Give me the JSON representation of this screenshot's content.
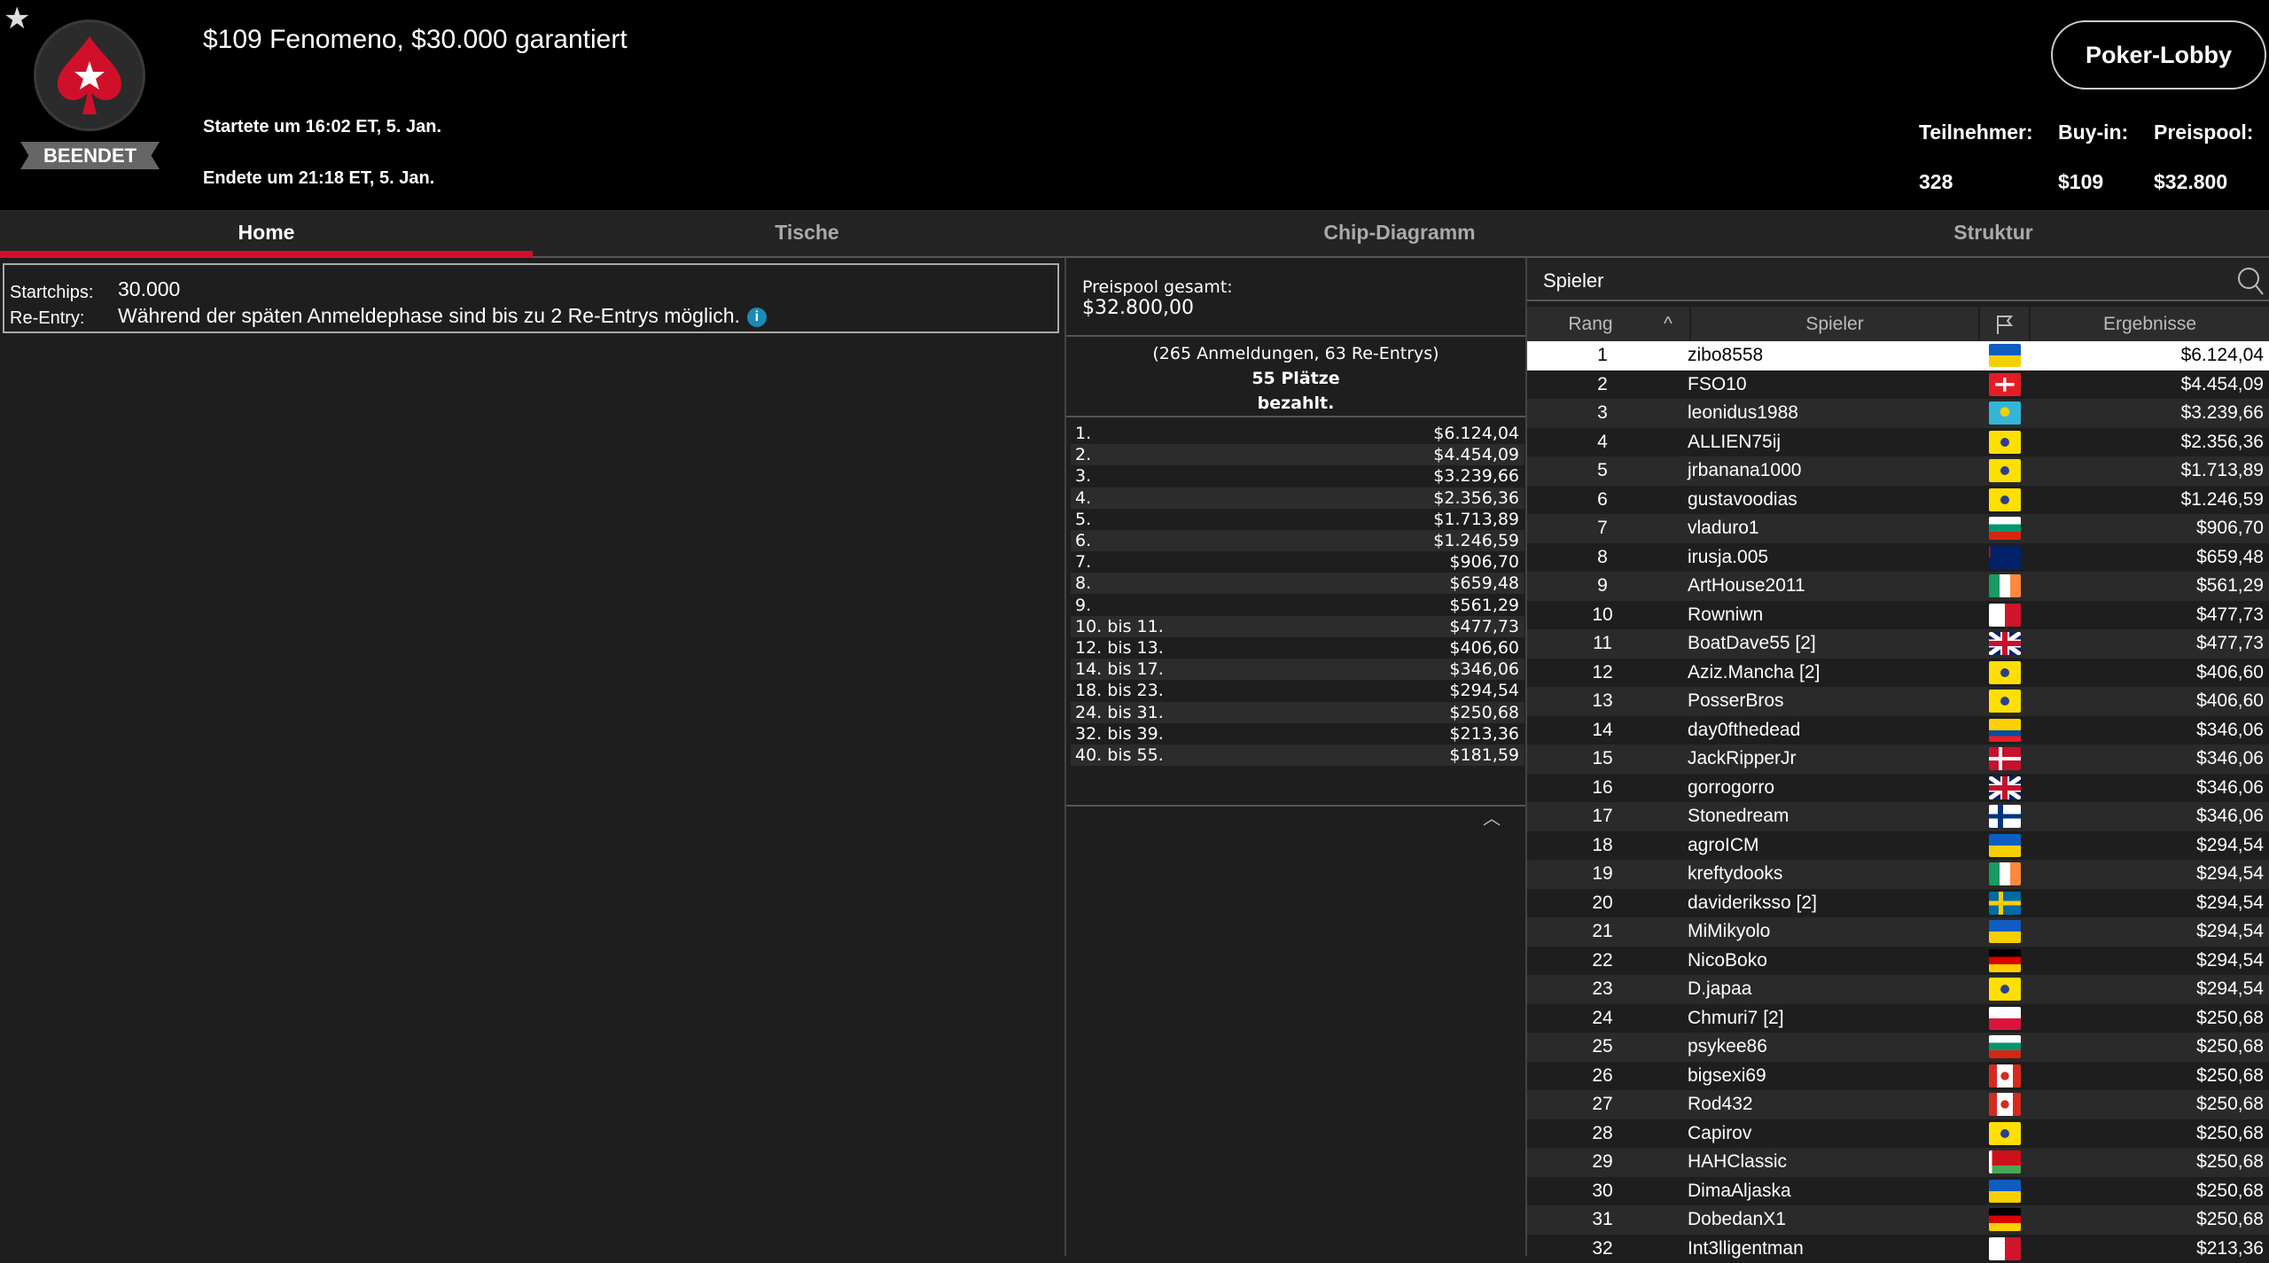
{
  "header": {
    "status_badge": "BEENDET",
    "title": "$109 Fenomeno, $30.000 garantiert",
    "started": "Startete um 16:02 ET, 5. Jan.",
    "ended": "Endete um 21:18 ET, 5. Jan.",
    "lobby_button": "Poker-Lobby",
    "stats": [
      {
        "label": "Teilnehmer:",
        "value": "328"
      },
      {
        "label": "Buy-in:",
        "value": "$109"
      },
      {
        "label": "Preispool:",
        "value": "$32.800"
      }
    ]
  },
  "tabs": [
    {
      "label": "Home",
      "active": true
    },
    {
      "label": "Tische"
    },
    {
      "label": "Chip-Diagramm"
    },
    {
      "label": "Struktur"
    }
  ],
  "home": {
    "startchips_label": "Startchips:",
    "startchips_value": "30.000",
    "reentry_label": "Re-Entry:",
    "reentry_value": "Während der späten Anmeldephase sind bis zu 2 Re-Entrys möglich.",
    "info_icon": "i"
  },
  "prizepool": {
    "label": "Preispool gesamt:",
    "value": "$32.800,00",
    "entries": "(265 Anmeldungen, 63 Re-Entrys)",
    "paid_line1": "55 Plätze",
    "paid_line2": "bezahlt.",
    "payouts": [
      [
        "1.",
        "$6.124,04"
      ],
      [
        "2.",
        "$4.454,09"
      ],
      [
        "3.",
        "$3.239,66"
      ],
      [
        "4.",
        "$2.356,36"
      ],
      [
        "5.",
        "$1.713,89"
      ],
      [
        "6.",
        "$1.246,59"
      ],
      [
        "7.",
        "$906,70"
      ],
      [
        "8.",
        "$659,48"
      ],
      [
        "9.",
        "$561,29"
      ],
      [
        "10. bis 11.",
        "$477,73"
      ],
      [
        "12. bis 13.",
        "$406,60"
      ],
      [
        "14. bis 17.",
        "$346,06"
      ],
      [
        "18. bis 23.",
        "$294,54"
      ],
      [
        "24. bis 31.",
        "$250,68"
      ],
      [
        "32. bis 39.",
        "$213,36"
      ],
      [
        "40. bis 55.",
        "$181,59"
      ]
    ]
  },
  "players": {
    "search_label": "Spieler",
    "columns": {
      "rank": "Rang",
      "player": "Spieler",
      "results": "Ergebnisse"
    },
    "sort": "rank-ascending",
    "selected_row": 1,
    "rows": [
      [
        "1",
        "zibo8558",
        "UA",
        "$6.124,04"
      ],
      [
        "2",
        "FSO10",
        "CH",
        "$4.454,09"
      ],
      [
        "3",
        "leonidus1988",
        "KZ",
        "$3.239,66"
      ],
      [
        "4",
        "ALLIEN75ij",
        "BR",
        "$2.356,36"
      ],
      [
        "5",
        "jrbanana1000",
        "BR",
        "$1.713,89"
      ],
      [
        "6",
        "gustavoodias",
        "BR",
        "$1.246,59"
      ],
      [
        "7",
        "vladuro1",
        "BG",
        "$906,70"
      ],
      [
        "8",
        "irusja.005",
        "AU",
        "$659,48"
      ],
      [
        "9",
        "ArtHouse2011",
        "IE",
        "$561,29"
      ],
      [
        "10",
        "Rowniwn",
        "MT",
        "$477,73"
      ],
      [
        "11",
        "BoatDave55 [2]",
        "GB",
        "$477,73"
      ],
      [
        "12",
        "Aziz.Mancha [2]",
        "BR",
        "$406,60"
      ],
      [
        "13",
        "PosserBros",
        "BR",
        "$406,60"
      ],
      [
        "14",
        "day0fthedead",
        "EC",
        "$346,06"
      ],
      [
        "15",
        "JackRipperJr",
        "DK",
        "$346,06"
      ],
      [
        "16",
        "gorrogorro",
        "GB",
        "$346,06"
      ],
      [
        "17",
        "Stonedream",
        "FI",
        "$346,06"
      ],
      [
        "18",
        "agroICM",
        "UA",
        "$294,54"
      ],
      [
        "19",
        "kreftydooks",
        "IE",
        "$294,54"
      ],
      [
        "20",
        "davideriksso [2]",
        "SE",
        "$294,54"
      ],
      [
        "21",
        "MiMikyolo",
        "UA",
        "$294,54"
      ],
      [
        "22",
        "NicoBoko",
        "DE",
        "$294,54"
      ],
      [
        "23",
        "D.japaa",
        "BR",
        "$294,54"
      ],
      [
        "24",
        "Chmuri7 [2]",
        "PL",
        "$250,68"
      ],
      [
        "25",
        "psykee86",
        "BG",
        "$250,68"
      ],
      [
        "26",
        "bigsexi69",
        "CA",
        "$250,68"
      ],
      [
        "27",
        "Rod432",
        "CA",
        "$250,68"
      ],
      [
        "28",
        "Capirov",
        "BR",
        "$250,68"
      ],
      [
        "29",
        "HAHClassic",
        "BY",
        "$250,68"
      ],
      [
        "30",
        "DimaAljaska",
        "UA",
        "$250,68"
      ],
      [
        "31",
        "DobedanX1",
        "DE",
        "$250,68"
      ],
      [
        "32",
        "Int3lligentman",
        "MT",
        "$213,36"
      ]
    ]
  },
  "colors": {
    "accent": "#d0102a",
    "info": "#1b8ab5",
    "header_bg": "#000000",
    "panel_bg": "#1e1e1e"
  }
}
